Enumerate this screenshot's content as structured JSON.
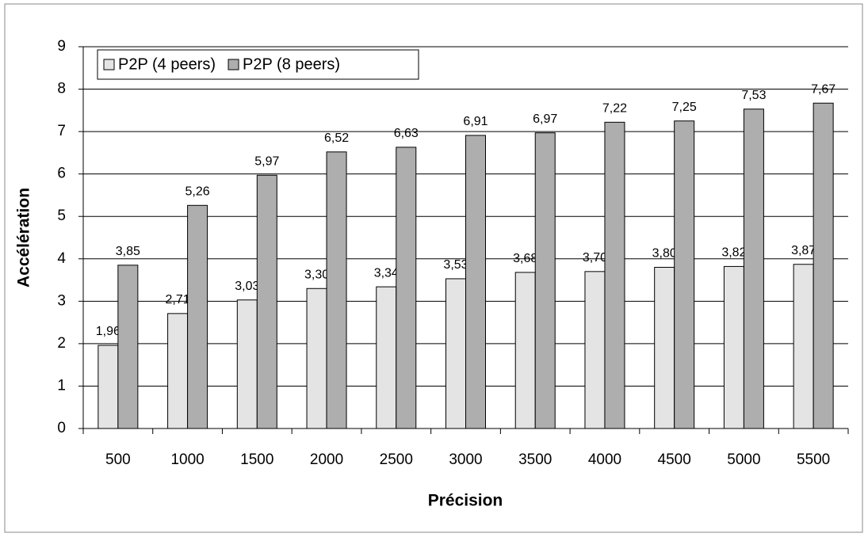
{
  "chart_data": {
    "type": "bar",
    "x_label": "Précision",
    "y_label": "Accélération",
    "categories": [
      "500",
      "1000",
      "1500",
      "2000",
      "2500",
      "3000",
      "3500",
      "4000",
      "4500",
      "5000",
      "5500"
    ],
    "series": [
      {
        "name": "P2P (4 peers)",
        "color": "#e4e4e4",
        "values": [
          1.96,
          2.71,
          3.03,
          3.3,
          3.34,
          3.53,
          3.68,
          3.7,
          3.8,
          3.82,
          3.87
        ],
        "value_labels": [
          "1,96",
          "2,71",
          "3,03",
          "3,30",
          "3,34",
          "3,53",
          "3,68",
          "3,70",
          "3,80",
          "3,82",
          "3,87"
        ]
      },
      {
        "name": "P2P (8 peers)",
        "color": "#aeaeae",
        "values": [
          3.85,
          5.26,
          5.97,
          6.52,
          6.63,
          6.91,
          6.97,
          7.22,
          7.25,
          7.53,
          7.67
        ],
        "value_labels": [
          "3,85",
          "5,26",
          "5,97",
          "6,52",
          "6,63",
          "6,91",
          "6,97",
          "7,22",
          "7,25",
          "7,53",
          "7,67"
        ]
      }
    ],
    "ylim": [
      0,
      9
    ],
    "yticks": [
      0,
      1,
      2,
      3,
      4,
      5,
      6,
      7,
      8,
      9
    ],
    "grid": true,
    "legend": "top-left"
  }
}
